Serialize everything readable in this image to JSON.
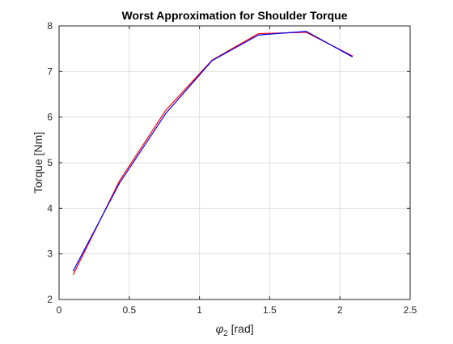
{
  "chart_data": {
    "type": "line",
    "title": "Worst Approximation for Shoulder Torque",
    "xlabel_symbol": "φ",
    "xlabel_subscript": "2",
    "xlabel_unit": " [rad]",
    "ylabel": "Torque [Nm]",
    "xlim": [
      0,
      2.5
    ],
    "ylim": [
      2,
      8
    ],
    "xticks": [
      0,
      0.5,
      1,
      1.5,
      2,
      2.5
    ],
    "yticks": [
      2,
      3,
      4,
      5,
      6,
      7,
      8
    ],
    "xtick_labels": [
      "0",
      "0.5",
      "1",
      "1.5",
      "2",
      "2.5"
    ],
    "ytick_labels": [
      "2",
      "3",
      "4",
      "5",
      "6",
      "7",
      "8"
    ],
    "grid": true,
    "legend": null,
    "series": [
      {
        "color": "#ff0000",
        "x": [
          0.1,
          0.43,
          0.76,
          1.09,
          1.42,
          1.76,
          2.09
        ],
        "y": [
          2.54,
          4.6,
          6.15,
          7.25,
          7.83,
          7.86,
          7.34
        ]
      },
      {
        "color": "#0000ff",
        "x": [
          0.1,
          0.43,
          0.76,
          1.09,
          1.42,
          1.76,
          2.09
        ],
        "y": [
          2.62,
          4.55,
          6.08,
          7.24,
          7.8,
          7.88,
          7.32
        ]
      }
    ]
  }
}
